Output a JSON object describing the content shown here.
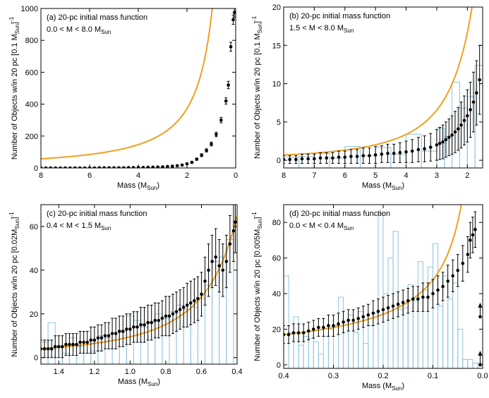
{
  "colors": {
    "fit": "#f0a020",
    "histogram": "#8ec3df",
    "points": "#000000"
  },
  "chart_data": [
    {
      "type": "scatter",
      "id": "a",
      "title": "(a) 20-pc initial mass function",
      "range_label": "0.0 < M < 8.0 M",
      "range_sub": "Sun",
      "xlabel": "Mass (M",
      "xlabel_sub": "Sun",
      "xlabel_end": ")",
      "ylabel": "Number of Objects w/in 20 pc [0.1 M",
      "ylabel_sub": "Sun",
      "ylabel_end": "]",
      "ylabel_sup": "-1",
      "xlim": [
        8,
        0
      ],
      "ylim": [
        0,
        1000
      ],
      "xticks": [
        8,
        6,
        4,
        2,
        0
      ],
      "xtick_labels": [
        "8",
        "6",
        "4",
        "2",
        "0"
      ],
      "yticks": [
        0,
        200,
        400,
        600,
        800,
        1000
      ],
      "ytick_labels": [
        "0",
        "200",
        "400",
        "600",
        "800",
        "1000"
      ],
      "fit": {
        "A": 950,
        "b": 1.35,
        "xmin": 0.0,
        "xmax": 8.0
      },
      "series": [
        {
          "name": "binned counts",
          "x": [
            8.0,
            7.8,
            7.6,
            7.4,
            7.2,
            7.0,
            6.8,
            6.6,
            6.4,
            6.2,
            6.0,
            5.8,
            5.6,
            5.4,
            5.2,
            5.0,
            4.8,
            4.6,
            4.4,
            4.2,
            4.0,
            3.8,
            3.6,
            3.4,
            3.2,
            3.0,
            2.8,
            2.6,
            2.4,
            2.2,
            2.0,
            1.8,
            1.6,
            1.4,
            1.2,
            1.0,
            0.8,
            0.6,
            0.4,
            0.3,
            0.2,
            0.1,
            0.05
          ],
          "y": [
            0,
            0,
            0,
            0,
            0,
            0,
            0,
            0,
            0,
            0,
            0,
            0,
            1,
            1,
            1,
            1,
            1,
            1,
            2,
            2,
            3,
            3,
            4,
            5,
            6,
            7,
            9,
            11,
            14,
            18,
            26,
            35,
            55,
            80,
            110,
            150,
            210,
            300,
            420,
            520,
            760,
            930,
            975
          ],
          "err": [
            1,
            1,
            1,
            1,
            1,
            1,
            1,
            1,
            1,
            1,
            1,
            1,
            1,
            1,
            1,
            1,
            1,
            1,
            1,
            1,
            2,
            2,
            2,
            2,
            2,
            3,
            3,
            3,
            4,
            4,
            5,
            6,
            7,
            9,
            10,
            12,
            14,
            17,
            20,
            23,
            28,
            30,
            31
          ]
        }
      ]
    },
    {
      "type": "scatter",
      "id": "b",
      "title": "(b) 20-pc initial mass function",
      "range_label": "1.5 < M < 8.0 M",
      "range_sub": "Sun",
      "xlabel": "Mass (M",
      "xlabel_sub": "Sun",
      "xlabel_end": ")",
      "ylabel": "Number of Objects w/in 20 pc [0.1 M",
      "ylabel_sub": "Sun",
      "ylabel_end": "]",
      "ylabel_sup": "-1",
      "xlim": [
        8,
        1.5
      ],
      "ylim": [
        -1,
        20
      ],
      "xticks": [
        8,
        7,
        6,
        5,
        4,
        3,
        2
      ],
      "xtick_labels": [
        "8",
        "7",
        "6",
        "5",
        "4",
        "3",
        "2"
      ],
      "yticks": [
        0,
        5,
        10,
        15,
        20
      ],
      "ytick_labels": [
        "0",
        "5",
        "10",
        "15",
        "20"
      ],
      "fit": {
        "A": 82,
        "b": 2.3,
        "xmin": 1.5,
        "xmax": 8.0
      },
      "series": [
        {
          "name": "binned counts",
          "x": [
            8.0,
            7.8,
            7.6,
            7.4,
            7.2,
            7.0,
            6.8,
            6.6,
            6.4,
            6.2,
            6.0,
            5.8,
            5.6,
            5.4,
            5.2,
            5.0,
            4.8,
            4.6,
            4.4,
            4.2,
            4.0,
            3.8,
            3.6,
            3.4,
            3.2,
            3.0,
            2.9,
            2.8,
            2.7,
            2.6,
            2.5,
            2.4,
            2.3,
            2.2,
            2.1,
            2.0,
            1.9,
            1.8,
            1.7,
            1.6
          ],
          "y": [
            0.1,
            0.1,
            0.1,
            0.2,
            0.2,
            0.2,
            0.3,
            0.3,
            0.3,
            0.4,
            0.4,
            0.5,
            0.5,
            0.6,
            0.6,
            0.7,
            0.8,
            0.9,
            0.9,
            1.0,
            1.1,
            1.2,
            1.4,
            1.5,
            1.7,
            2.0,
            2.2,
            2.4,
            2.7,
            3.0,
            3.3,
            3.7,
            4.1,
            4.6,
            5.2,
            5.8,
            6.6,
            7.6,
            8.8,
            10.5
          ],
          "err": [
            0.5,
            0.5,
            0.5,
            0.6,
            0.6,
            0.6,
            0.7,
            0.7,
            0.7,
            0.8,
            0.8,
            0.9,
            0.9,
            1.0,
            1.0,
            1.1,
            1.1,
            1.2,
            1.2,
            1.3,
            1.4,
            1.5,
            1.6,
            1.7,
            1.8,
            2.0,
            2.1,
            2.2,
            2.3,
            2.4,
            2.5,
            2.7,
            2.8,
            3.0,
            3.2,
            3.4,
            3.6,
            3.9,
            4.2,
            4.5
          ]
        }
      ],
      "histogram": {
        "edges": [
          8.0,
          7.5,
          7.0,
          6.5,
          6.0,
          5.5,
          5.0,
          4.5,
          4.0,
          3.5,
          3.0,
          2.75,
          2.5,
          2.25,
          2.0,
          1.75,
          1.5
        ],
        "counts": [
          0.4,
          0.5,
          0.9,
          0.3,
          1.8,
          0.6,
          1.7,
          0.8,
          3.4,
          1.2,
          4.2,
          3.1,
          10.2,
          6.8,
          8.3,
          12.4,
          14.5
        ]
      }
    },
    {
      "type": "scatter",
      "id": "c",
      "title": "(c) 20-pc initial mass function",
      "range_label": "0.4 < M < 1.5 M",
      "range_sub": "Sun",
      "xlabel": "Mass (M",
      "xlabel_sub": "Sun",
      "xlabel_end": ")",
      "ylabel": "Number of Objects w/in 20 pc [0.02M",
      "ylabel_sub": "Sun",
      "ylabel_end": "]",
      "ylabel_sup": "-1",
      "xlim": [
        1.5,
        0.4
      ],
      "ylim": [
        -3,
        70
      ],
      "xticks": [
        1.4,
        1.2,
        1.0,
        0.8,
        0.6,
        0.4
      ],
      "xtick_labels": [
        "1.4",
        "1.2",
        "1.0",
        "0.8",
        "0.6",
        "0.4"
      ],
      "yticks": [
        0,
        20,
        40,
        60
      ],
      "ytick_labels": [
        "0",
        "20",
        "40",
        "60"
      ],
      "fit": {
        "A": 9.5,
        "b": 2.1,
        "xmin": 0.4,
        "xmax": 1.5
      },
      "series": [
        {
          "name": "binned counts",
          "x": [
            1.5,
            1.48,
            1.46,
            1.44,
            1.42,
            1.4,
            1.38,
            1.36,
            1.34,
            1.32,
            1.3,
            1.28,
            1.26,
            1.24,
            1.22,
            1.2,
            1.18,
            1.16,
            1.14,
            1.12,
            1.1,
            1.08,
            1.06,
            1.04,
            1.02,
            1.0,
            0.98,
            0.96,
            0.94,
            0.92,
            0.9,
            0.88,
            0.86,
            0.84,
            0.82,
            0.8,
            0.78,
            0.76,
            0.74,
            0.72,
            0.7,
            0.68,
            0.66,
            0.64,
            0.62,
            0.6,
            0.58,
            0.56,
            0.54,
            0.52,
            0.5,
            0.48,
            0.46,
            0.44,
            0.42,
            0.41
          ],
          "y": [
            4,
            4,
            4,
            4,
            5,
            5,
            5,
            6,
            6,
            6,
            6,
            7,
            7,
            7,
            8,
            8,
            9,
            9,
            10,
            10,
            11,
            11,
            12,
            12,
            13,
            13,
            14,
            14,
            15,
            15,
            16,
            16,
            17,
            17,
            18,
            19,
            19,
            20,
            21,
            22,
            23,
            24,
            25,
            26,
            27,
            29,
            35,
            40,
            44,
            46,
            42,
            40,
            44,
            52,
            58,
            62
          ],
          "err": [
            4,
            4,
            4,
            4,
            5,
            5,
            5,
            5,
            5,
            5,
            5,
            5,
            5,
            5,
            6,
            6,
            6,
            6,
            6,
            6,
            7,
            7,
            7,
            7,
            7,
            7,
            7,
            7,
            8,
            8,
            8,
            8,
            8,
            8,
            8,
            9,
            9,
            9,
            9,
            9,
            9,
            10,
            10,
            10,
            10,
            10,
            11,
            12,
            12,
            13,
            12,
            12,
            12,
            13,
            14,
            14
          ]
        }
      ],
      "histogram": {
        "edges": [
          1.5,
          1.46,
          1.42,
          1.38,
          1.34,
          1.3,
          1.26,
          1.22,
          1.18,
          1.14,
          1.1,
          1.06,
          1.02,
          0.98,
          0.94,
          0.9,
          0.86,
          0.82,
          0.78,
          0.74,
          0.7,
          0.66,
          0.62,
          0.58,
          0.54,
          0.5,
          0.46,
          0.42,
          0.4
        ],
        "counts": [
          7,
          16,
          5,
          2,
          9,
          5,
          6,
          3,
          10,
          9,
          8,
          12,
          19,
          17,
          14,
          16,
          20,
          18,
          21,
          24,
          22,
          23,
          27,
          33,
          44,
          46,
          54,
          60
        ]
      }
    },
    {
      "type": "scatter",
      "id": "d",
      "title": "(d) 20-pc initial mass function",
      "range_label": "0.0 < M < 0.4 M",
      "range_sub": "Sun",
      "xlabel": "Mass (M",
      "xlabel_sub": "Sun",
      "xlabel_end": ")",
      "ylabel": "Number of Objects w/in 20 pc [0.005M",
      "ylabel_sub": "Sun",
      "ylabel_end": "]",
      "ylabel_sup": "-1",
      "xlim": [
        0.4,
        0.0
      ],
      "ylim": [
        -2,
        90
      ],
      "xticks": [
        0.4,
        0.3,
        0.2,
        0.1,
        0.0
      ],
      "xtick_labels": [
        "0.4",
        "0.3",
        "0.2",
        "0.1",
        "0.0"
      ],
      "yticks": [
        0,
        20,
        40,
        60,
        80
      ],
      "ytick_labels": [
        "0",
        "20",
        "40",
        "60",
        "80"
      ],
      "fit": {
        "A": 8.5,
        "b": 0.75,
        "xmin": 0.007,
        "xmax": 0.41
      },
      "series": [
        {
          "name": "binned counts",
          "x": [
            0.4,
            0.39,
            0.38,
            0.37,
            0.36,
            0.35,
            0.34,
            0.33,
            0.32,
            0.31,
            0.3,
            0.29,
            0.28,
            0.27,
            0.26,
            0.25,
            0.24,
            0.23,
            0.22,
            0.21,
            0.2,
            0.19,
            0.18,
            0.17,
            0.16,
            0.15,
            0.14,
            0.13,
            0.12,
            0.11,
            0.1,
            0.09,
            0.08,
            0.07,
            0.06,
            0.05,
            0.04,
            0.03,
            0.025,
            0.02,
            0.015
          ],
          "y": [
            17,
            17,
            18,
            18,
            18,
            19,
            20,
            21,
            21,
            22,
            22,
            23,
            24,
            25,
            25,
            26,
            27,
            28,
            29,
            30,
            31,
            32,
            33,
            34,
            35,
            36,
            37,
            37,
            38,
            38,
            40,
            42,
            44,
            47,
            50,
            53,
            57,
            62,
            70,
            73,
            76
          ],
          "err": [
            5,
            5,
            5,
            5,
            5,
            5,
            5,
            5,
            5,
            6,
            6,
            6,
            6,
            6,
            6,
            6,
            6,
            6,
            7,
            7,
            7,
            7,
            7,
            7,
            7,
            7,
            7,
            7,
            8,
            8,
            8,
            8,
            8,
            9,
            9,
            9,
            10,
            10,
            10,
            10,
            10
          ]
        }
      ],
      "limits": {
        "x": [
          0.005,
          0.005
        ],
        "y": [
          27,
          0
        ]
      },
      "histogram": {
        "edges": [
          0.41,
          0.4,
          0.39,
          0.38,
          0.37,
          0.36,
          0.35,
          0.34,
          0.33,
          0.32,
          0.31,
          0.3,
          0.29,
          0.28,
          0.27,
          0.26,
          0.25,
          0.24,
          0.23,
          0.22,
          0.21,
          0.2,
          0.19,
          0.18,
          0.17,
          0.16,
          0.15,
          0.14,
          0.13,
          0.12,
          0.11,
          0.1,
          0.09,
          0.08,
          0.07,
          0.06,
          0.05,
          0.04,
          0.03,
          0.02,
          0.01,
          0.0
        ],
        "counts": [
          8,
          50,
          18,
          27,
          11,
          16,
          15,
          13,
          6,
          16,
          20,
          22,
          38,
          24,
          28,
          18,
          30,
          12,
          22,
          29,
          85,
          40,
          60,
          75,
          31,
          32,
          45,
          36,
          58,
          42,
          55,
          68,
          33,
          50,
          37,
          46,
          20,
          3,
          3,
          1,
          1
        ]
      }
    }
  ]
}
